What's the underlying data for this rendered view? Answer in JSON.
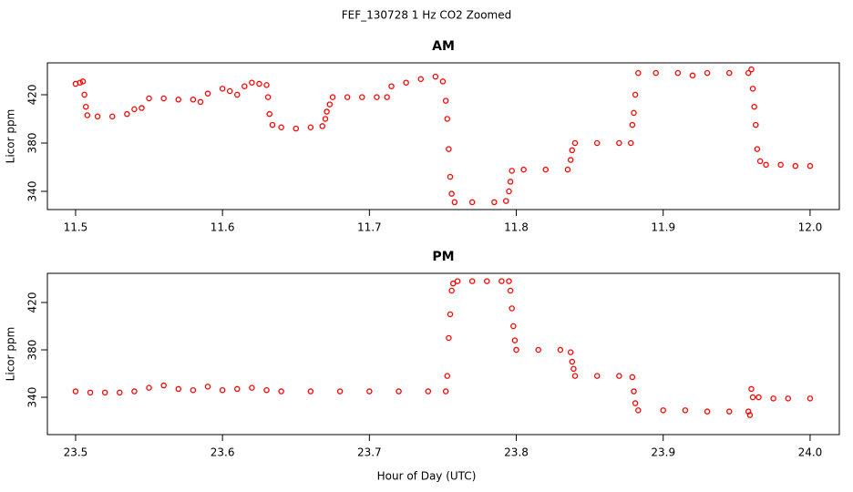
{
  "title": "FEF_130728  1 Hz CO2 Zoomed",
  "xlabel": "Hour of Day (UTC)",
  "chart_data": [
    {
      "type": "scatter",
      "title": "AM",
      "ylabel": "Licor ppm",
      "color": "#ff0000",
      "x": [
        11.5,
        11.503,
        11.505,
        11.506,
        11.507,
        11.508,
        11.515,
        11.525,
        11.535,
        11.54,
        11.545,
        11.55,
        11.56,
        11.57,
        11.58,
        11.585,
        11.59,
        11.6,
        11.605,
        11.61,
        11.615,
        11.62,
        11.625,
        11.63,
        11.631,
        11.632,
        11.634,
        11.64,
        11.65,
        11.66,
        11.668,
        11.67,
        11.671,
        11.673,
        11.675,
        11.685,
        11.695,
        11.705,
        11.712,
        11.715,
        11.725,
        11.735,
        11.745,
        11.75,
        11.752,
        11.753,
        11.754,
        11.755,
        11.756,
        11.758,
        11.77,
        11.785,
        11.793,
        11.795,
        11.796,
        11.797,
        11.805,
        11.82,
        11.835,
        11.837,
        11.838,
        11.84,
        11.855,
        11.87,
        11.878,
        11.879,
        11.88,
        11.881,
        11.883,
        11.895,
        11.91,
        11.92,
        11.93,
        11.945,
        11.958,
        11.96,
        11.961,
        11.962,
        11.963,
        11.964,
        11.966,
        11.97,
        11.98,
        11.99,
        12.0
      ],
      "values": [
        429,
        430,
        431,
        420,
        410,
        403,
        402,
        402,
        404,
        408,
        409,
        417,
        417,
        416,
        416,
        414,
        421,
        425,
        423,
        420,
        427,
        430,
        429,
        428,
        418,
        404,
        395,
        393,
        392,
        393,
        394,
        400,
        406,
        412,
        418,
        418,
        418,
        418,
        418,
        427,
        430,
        433,
        435,
        431,
        415,
        400,
        375,
        352,
        338,
        331,
        331,
        331,
        332,
        340,
        348,
        357,
        358,
        358,
        358,
        366,
        374,
        380,
        380,
        380,
        380,
        395,
        405,
        420,
        438,
        438,
        438,
        436,
        438,
        438,
        438,
        441,
        425,
        410,
        395,
        375,
        365,
        362,
        362,
        361,
        361
      ],
      "xlim": [
        11.4808,
        12.0199
      ],
      "ylim": [
        324.9,
        446.4
      ],
      "xticks": [
        11.5,
        11.6,
        11.7,
        11.8,
        11.9,
        {
          "value": 12.0,
          "label": "12.0"
        }
      ],
      "yticks": [
        340,
        380,
        420
      ]
    },
    {
      "type": "scatter",
      "title": "PM",
      "ylabel": "Licor ppm",
      "color": "#ff0000",
      "x": [
        23.5,
        23.51,
        23.52,
        23.53,
        23.54,
        23.55,
        23.56,
        23.57,
        23.58,
        23.59,
        23.6,
        23.61,
        23.62,
        23.63,
        23.64,
        23.66,
        23.68,
        23.7,
        23.72,
        23.74,
        23.752,
        23.753,
        23.754,
        23.755,
        23.756,
        23.757,
        23.76,
        23.77,
        23.78,
        23.79,
        23.795,
        23.796,
        23.797,
        23.798,
        23.799,
        23.8,
        23.815,
        23.83,
        23.837,
        23.838,
        23.839,
        23.84,
        23.855,
        23.87,
        23.879,
        23.88,
        23.881,
        23.883,
        23.9,
        23.915,
        23.93,
        23.945,
        23.958,
        23.959,
        23.96,
        23.961,
        23.965,
        23.975,
        23.985,
        24.0
      ],
      "values": [
        345,
        344,
        344,
        344,
        345,
        348,
        350,
        347,
        346,
        349,
        346,
        347,
        348,
        346,
        345,
        345,
        345,
        345,
        345,
        345,
        345,
        358,
        390,
        410,
        430,
        436,
        438,
        438,
        438,
        438,
        438,
        430,
        415,
        400,
        388,
        380,
        380,
        380,
        378,
        370,
        364,
        358,
        358,
        358,
        357,
        345,
        335,
        329,
        329,
        329,
        328,
        328,
        328,
        325,
        347,
        340,
        340,
        339,
        339,
        339
      ],
      "xlim": [
        23.4808,
        24.0199
      ],
      "ylim": [
        308.5,
        444.6
      ],
      "xticks": [
        23.5,
        23.6,
        23.7,
        23.8,
        23.9,
        {
          "value": 24.0,
          "label": "24.0"
        }
      ],
      "yticks": [
        340,
        380,
        420
      ]
    }
  ]
}
